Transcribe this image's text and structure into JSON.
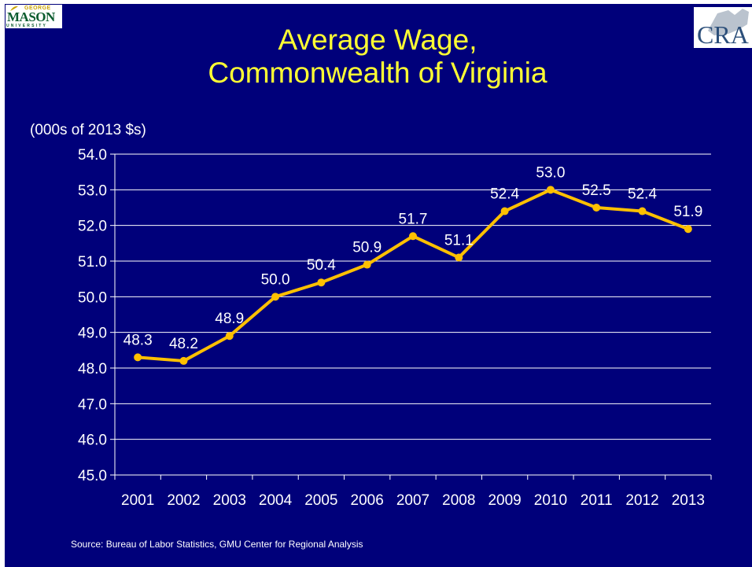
{
  "title_line1": "Average Wage,",
  "title_line2": "Commonwealth of Virginia",
  "units_label": "(000s of 2013 $s)",
  "source": "Source: Bureau of Labor Statistics, GMU Center for Regional Analysis",
  "logos": {
    "gmu_top": "GEORGE",
    "gmu_main": "MASON",
    "gmu_bottom": "UNIVERSITY",
    "cra": "CRA"
  },
  "colors": {
    "background": "#00007a",
    "title": "#ffff33",
    "line": "#ffc000",
    "text": "#ffffff"
  },
  "chart_data": {
    "type": "line",
    "x": [
      "2001",
      "2002",
      "2003",
      "2004",
      "2005",
      "2006",
      "2007",
      "2008",
      "2009",
      "2010",
      "2011",
      "2012",
      "2013"
    ],
    "series": [
      {
        "values": [
          48.3,
          48.2,
          48.9,
          50.0,
          50.4,
          50.9,
          51.7,
          51.1,
          52.4,
          53.0,
          52.5,
          52.4,
          51.9
        ]
      }
    ],
    "data_labels": [
      "48.3",
      "48.2",
      "48.9",
      "50.0",
      "50.4",
      "50.9",
      "51.7",
      "51.1",
      "52.4",
      "53.0",
      "52.5",
      "52.4",
      "51.9"
    ],
    "y_ticks": [
      "45.0",
      "46.0",
      "47.0",
      "48.0",
      "49.0",
      "50.0",
      "51.0",
      "52.0",
      "53.0",
      "54.0"
    ],
    "ylim": [
      45,
      54
    ],
    "grid": true,
    "legend": "none"
  }
}
